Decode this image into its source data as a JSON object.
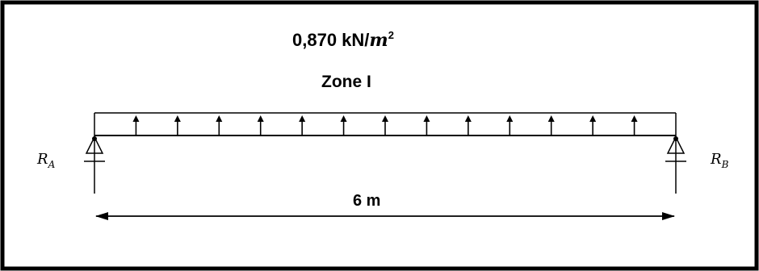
{
  "load": {
    "value": "0,870 kN/",
    "unit_base": "m",
    "unit_exp": "2",
    "zone": "Zone I",
    "arrow_count": 13
  },
  "supports": {
    "left": {
      "symbol": "R",
      "sub": "A"
    },
    "right": {
      "symbol": "R",
      "sub": "B"
    }
  },
  "span": {
    "label": "6 m"
  },
  "colors": {
    "ink": "#000000",
    "frame": "#000000",
    "background": "#ffffff"
  }
}
